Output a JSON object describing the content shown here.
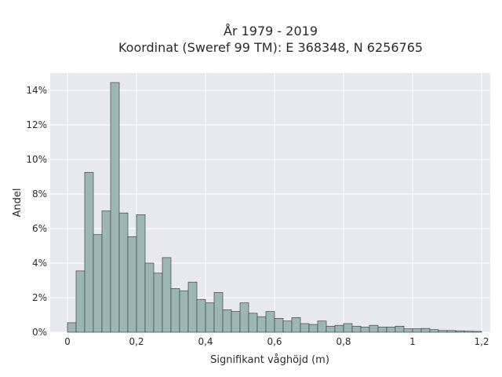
{
  "chart_data": {
    "type": "bar",
    "title_line1": "År 1979 - 2019",
    "title_line2": "Koordinat (Sweref 99 TM): E 368348, N 6256765",
    "xlabel": "Signifikant våghöjd (m)",
    "ylabel": "Andel",
    "xlim": [
      -0.05,
      1.225
    ],
    "ylim": [
      0,
      0.15
    ],
    "x_ticks": [
      0,
      0.2,
      0.4,
      0.6,
      0.8,
      1.0,
      1.2
    ],
    "x_tick_labels": [
      "0",
      "0,2",
      "0,4",
      "0,6",
      "0,8",
      "1",
      "1,2"
    ],
    "y_ticks": [
      0,
      0.02,
      0.04,
      0.06,
      0.08,
      0.1,
      0.12,
      0.14
    ],
    "y_tick_labels": [
      "0%",
      "2%",
      "4%",
      "6%",
      "8%",
      "10%",
      "12%",
      "14%"
    ],
    "grid": true,
    "bin_width": 0.025,
    "bin_start": 0.0,
    "values": [
      0.0055,
      0.0355,
      0.0925,
      0.0565,
      0.0702,
      0.1445,
      0.069,
      0.0553,
      0.068,
      0.04,
      0.0342,
      0.0432,
      0.0253,
      0.024,
      0.029,
      0.019,
      0.017,
      0.023,
      0.013,
      0.012,
      0.017,
      0.011,
      0.009,
      0.012,
      0.008,
      0.0065,
      0.0085,
      0.005,
      0.0045,
      0.0065,
      0.0035,
      0.004,
      0.005,
      0.0035,
      0.003,
      0.004,
      0.003,
      0.003,
      0.0035,
      0.002,
      0.002,
      0.0022,
      0.0015,
      0.001,
      0.001,
      0.0008,
      0.0006,
      0.0005
    ]
  },
  "colors": {
    "plot_bg": "#e8e8f0",
    "grid": "#ffffff",
    "bar_fill": "#9db5b4",
    "bar_stroke": "#3b4a4a"
  }
}
